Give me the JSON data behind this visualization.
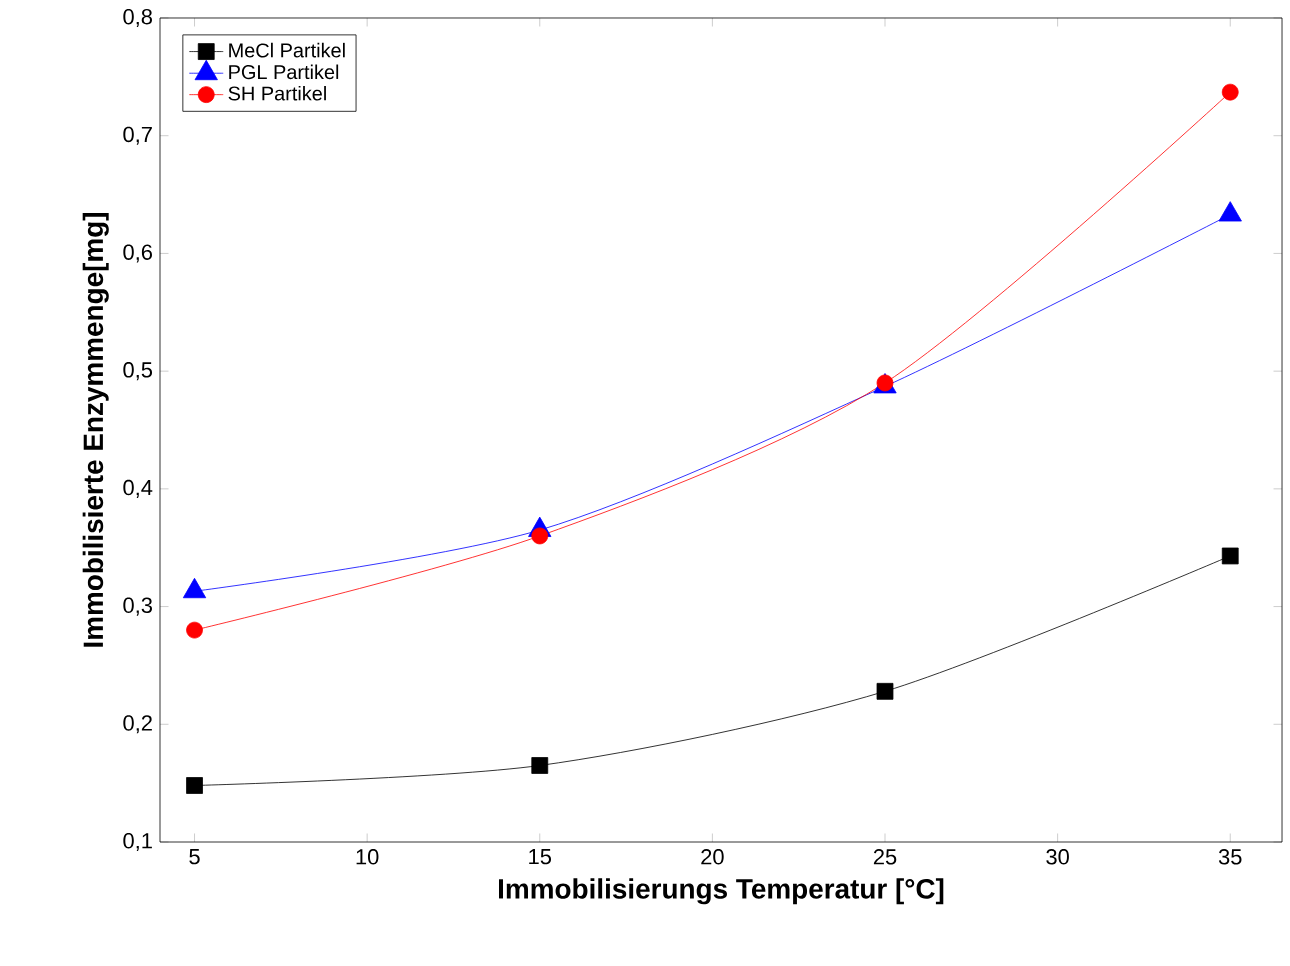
{
  "chart_data": {
    "type": "line",
    "xlabel": "Immobilisierungs Temperatur [°C]",
    "ylabel": "Immobilisierte Enzymmenge[mg]",
    "x": [
      5,
      15,
      25,
      35
    ],
    "series": [
      {
        "name": "MeCl Partikel",
        "color": "#000000",
        "marker": "square",
        "values": [
          0.148,
          0.165,
          0.228,
          0.343
        ]
      },
      {
        "name": "PGL Partikel",
        "color": "#0000ff",
        "marker": "triangle",
        "values": [
          0.313,
          0.365,
          0.487,
          0.633
        ]
      },
      {
        "name": "SH Partikel",
        "color": "#ff0000",
        "marker": "circle",
        "values": [
          0.28,
          0.36,
          0.49,
          0.737
        ]
      }
    ],
    "xlim": [
      4,
      36.5
    ],
    "ylim": [
      0.1,
      0.8
    ],
    "xticks": [
      5,
      10,
      15,
      20,
      25,
      30,
      35
    ],
    "yticks": [
      {
        "value": 0.1,
        "label": "0,1"
      },
      {
        "value": 0.2,
        "label": "0,2"
      },
      {
        "value": 0.3,
        "label": "0,3"
      },
      {
        "value": 0.4,
        "label": "0,4"
      },
      {
        "value": 0.5,
        "label": "0,5"
      },
      {
        "value": 0.6,
        "label": "0,6"
      },
      {
        "value": 0.7,
        "label": "0,7"
      },
      {
        "value": 0.8,
        "label": "0,8"
      }
    ],
    "grid": false,
    "legend": "top left",
    "line_style": "solid"
  }
}
